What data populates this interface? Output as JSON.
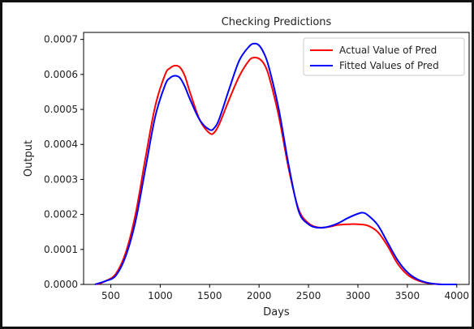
{
  "chart_data": {
    "type": "line",
    "title": "Checking Predictions",
    "xlabel": "Days",
    "ylabel": "Output",
    "xlim": [
      225,
      4125
    ],
    "ylim": [
      0,
      0.00072
    ],
    "xticks": [
      "500",
      "1000",
      "1500",
      "2000",
      "2500",
      "3000",
      "3500",
      "4000"
    ],
    "yticks": [
      "0.0000",
      "0.0001",
      "0.0002",
      "0.0003",
      "0.0004",
      "0.0005",
      "0.0006",
      "0.0007"
    ],
    "grid": false,
    "legend_position": "top-right",
    "series": [
      {
        "name": "Actual Value of Pred",
        "color": "#ff0000",
        "x": [
          360,
          450,
          550,
          650,
          750,
          850,
          950,
          1050,
          1100,
          1150,
          1200,
          1250,
          1300,
          1400,
          1500,
          1550,
          1600,
          1700,
          1800,
          1900,
          1950,
          2000,
          2050,
          2100,
          2200,
          2300,
          2400,
          2500,
          2600,
          2700,
          2800,
          2900,
          3000,
          3100,
          3200,
          3300,
          3400,
          3500,
          3600,
          3700,
          3800,
          3900,
          3950
        ],
        "y": [
          0.0,
          1e-05,
          3e-05,
          9e-05,
          0.0002,
          0.00036,
          0.00051,
          0.0006,
          0.000618,
          0.000625,
          0.00062,
          0.000595,
          0.00055,
          0.00047,
          0.000432,
          0.000435,
          0.00046,
          0.00053,
          0.000595,
          0.00064,
          0.000648,
          0.000645,
          0.00063,
          0.000595,
          0.00048,
          0.00033,
          0.000215,
          0.000175,
          0.000163,
          0.000164,
          0.00017,
          0.000172,
          0.000172,
          0.000168,
          0.00015,
          0.00011,
          6e-05,
          2.8e-05,
          1.2e-05,
          4e-06,
          1e-06,
          0.0,
          0.0
        ]
      },
      {
        "name": "Fitted Values of Pred",
        "color": "#0000ff",
        "x": [
          340,
          450,
          550,
          650,
          750,
          850,
          950,
          1050,
          1100,
          1150,
          1200,
          1250,
          1300,
          1400,
          1500,
          1550,
          1600,
          1700,
          1800,
          1900,
          1950,
          2000,
          2050,
          2100,
          2200,
          2300,
          2400,
          2500,
          2600,
          2700,
          2800,
          2900,
          3000,
          3050,
          3100,
          3200,
          3300,
          3400,
          3500,
          3600,
          3700,
          3800,
          3900,
          4000
        ],
        "y": [
          0.0,
          1e-05,
          2.5e-05,
          8e-05,
          0.00018,
          0.00033,
          0.00048,
          0.00057,
          0.00059,
          0.000596,
          0.00059,
          0.000565,
          0.00053,
          0.00047,
          0.000442,
          0.000448,
          0.000475,
          0.00056,
          0.00064,
          0.00068,
          0.000688,
          0.000683,
          0.00066,
          0.00062,
          0.0005,
          0.00034,
          0.00021,
          0.000172,
          0.000162,
          0.000165,
          0.000175,
          0.00019,
          0.000202,
          0.000205,
          0.000198,
          0.00017,
          0.00012,
          7e-05,
          3.5e-05,
          1.5e-05,
          5e-06,
          1e-06,
          0.0,
          0.0
        ]
      }
    ]
  }
}
